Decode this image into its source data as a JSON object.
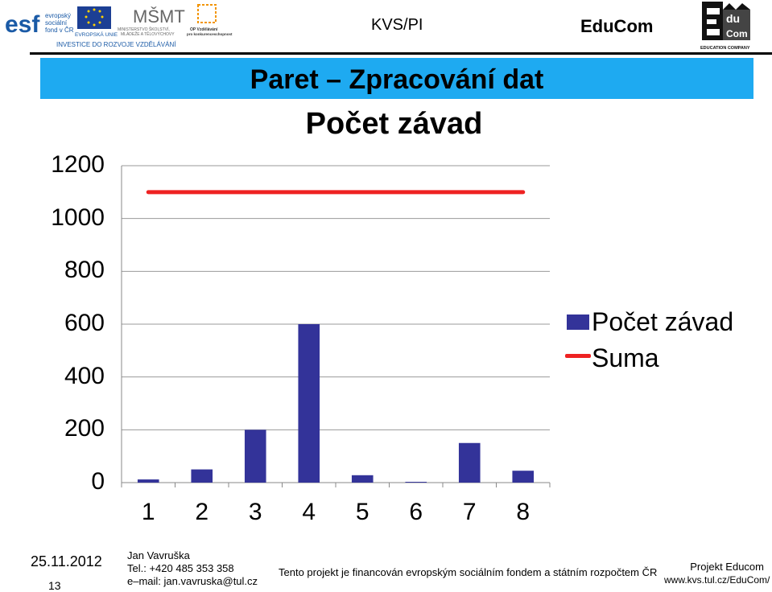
{
  "header": {
    "logos": {
      "esf_text": "evropský sociální fond v ČR",
      "eu_text": "EVROPSKÁ UNIE",
      "msmt_text": "MINISTERSTVO ŠKOLSTVÍ, MLÁDEŽE A TĚLOVÝCHOVY",
      "op_text": "OP Vzdělávání pro konkurenceschopnost",
      "invest_text": "INVESTICE DO ROZVOJE VZDĚLÁVÁNÍ",
      "educom_company": "EDUCATION COMPANY"
    },
    "center_label": "KVS/PI",
    "right_label": "EduCom",
    "colors": {
      "banner": "#1eaaf1",
      "line": "#000000"
    }
  },
  "slide": {
    "title": "Paret – Zpracování dat"
  },
  "chart_data": {
    "type": "bar",
    "title": "Počet závad",
    "categories": [
      "1",
      "2",
      "3",
      "4",
      "5",
      "6",
      "7",
      "8"
    ],
    "series": [
      {
        "name": "Počet závad",
        "type": "bar",
        "color": "#333399",
        "values": [
          12,
          50,
          200,
          600,
          28,
          3,
          150,
          45
        ]
      },
      {
        "name": "Suma",
        "type": "line",
        "color": "#ee2222",
        "values": [
          1100,
          1100,
          1100,
          1100,
          1100,
          1100,
          1100,
          1100
        ]
      }
    ],
    "yticks": [
      "0",
      "200",
      "400",
      "600",
      "800",
      "1000",
      "1200"
    ],
    "ylim": [
      0,
      1200
    ],
    "grid": true,
    "legend_position": "right"
  },
  "footer": {
    "date": "25.11.2012",
    "page": "13",
    "author_name": "Jan Vavruška",
    "author_tel": "Tel.: +420 485 353 358",
    "author_email": "e–mail: jan.vavruska@tul.cz",
    "funding_note": "Tento projekt je financován evropským sociálním fondem a státním rozpočtem ČR",
    "project_name": "Projekt Educom",
    "project_url": "www.kvs.tul.cz/EduCom/"
  }
}
